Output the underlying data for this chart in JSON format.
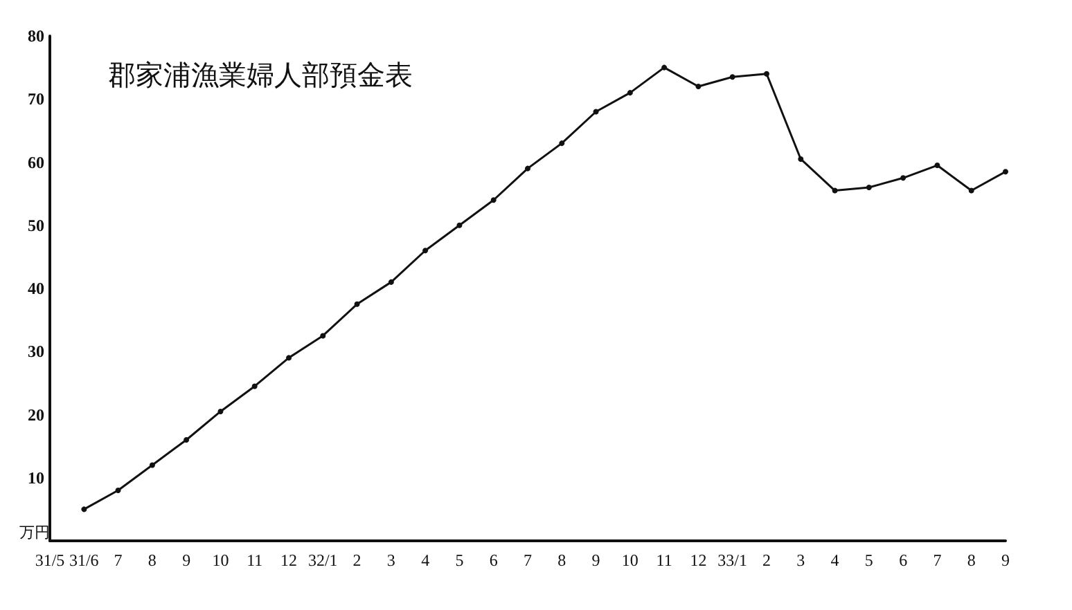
{
  "chart_data": {
    "type": "line",
    "title": "郡家浦漁業婦人部預金表",
    "ylabel": "万円",
    "categories": [
      "31/5",
      "31/6",
      "7",
      "8",
      "9",
      "10",
      "11",
      "12",
      "32/1",
      "2",
      "3",
      "4",
      "5",
      "6",
      "7",
      "8",
      "9",
      "10",
      "11",
      "12",
      "33/1",
      "2",
      "3",
      "4",
      "5",
      "6",
      "7",
      "8",
      "9"
    ],
    "series": [
      {
        "color": "#111111",
        "values": [
          null,
          5,
          8,
          12,
          16,
          20.5,
          24.5,
          29,
          32.5,
          37.5,
          41,
          46,
          50,
          54,
          59,
          63,
          68,
          71,
          75,
          72,
          73.5,
          74,
          60.5,
          55.5,
          56,
          57.5,
          59.5,
          55.5,
          58.5
        ]
      }
    ],
    "ylim": [
      0,
      80
    ],
    "yticks": [
      10,
      20,
      30,
      40,
      50,
      60,
      70,
      80
    ],
    "grid": false,
    "marker": "circle",
    "line_style": "solid"
  }
}
